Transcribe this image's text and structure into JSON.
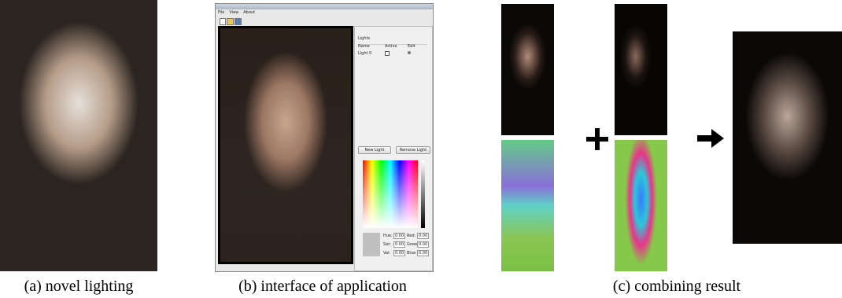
{
  "figure": {
    "captions": [
      "(a) novel lighting",
      "(b) interface of application",
      "(c) combining result"
    ]
  },
  "app": {
    "menu": [
      "File",
      "View",
      "About"
    ],
    "panel_title": "Lights",
    "columns": [
      "Name",
      "Active",
      "Edit"
    ],
    "rows": [
      [
        "Light 0"
      ]
    ],
    "buttons": [
      "New Light",
      "Remove Light"
    ],
    "fields": [
      {
        "label": "Hue:",
        "value": "0.00"
      },
      {
        "label": "Red:",
        "value": "0.00"
      },
      {
        "label": "Sat:",
        "value": "0.00"
      },
      {
        "label": "Green:",
        "value": "0.00"
      },
      {
        "label": "Val:",
        "value": "0.00"
      },
      {
        "label": "Blue:",
        "value": "0.00"
      }
    ]
  }
}
